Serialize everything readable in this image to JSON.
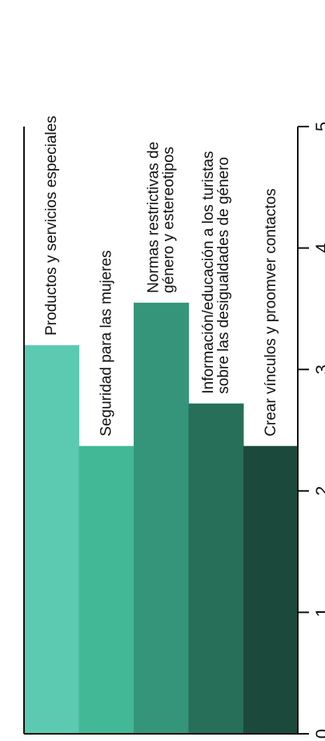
{
  "chart_data": {
    "type": "bar",
    "orientation": "rotated-vertical",
    "categories": [
      [
        "Productos y servicios especiales"
      ],
      [
        "Seguridad para las mujeres"
      ],
      [
        "Normas restrictivas de",
        "género y estereotipos"
      ],
      [
        "Información/educación a los turistas",
        "sobre las desigualdades de género"
      ],
      [
        "Crear vínculos y proomver contactos"
      ]
    ],
    "values": [
      3.2,
      2.37,
      3.55,
      2.72,
      2.37
    ],
    "colors": [
      "#5ccab0",
      "#42b897",
      "#35957a",
      "#276f59",
      "#1b4a3c"
    ],
    "ylim": [
      0,
      5
    ],
    "yticks": [
      0,
      1,
      2,
      3,
      4,
      5
    ],
    "grid": false,
    "legend": "none"
  }
}
